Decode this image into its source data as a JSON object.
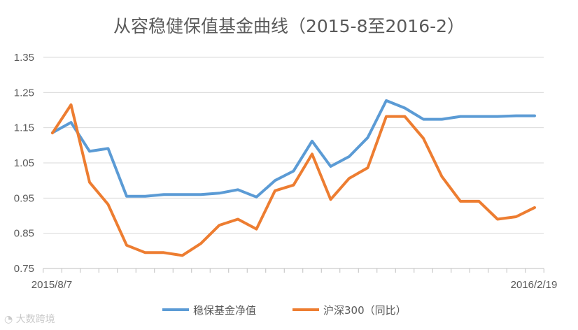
{
  "chart_data": {
    "type": "line",
    "title": "从容稳健保值基金曲线（2015-8至2016-2）",
    "xlabel": "",
    "ylabel": "",
    "x_tick_labels": [
      "2015/8/7",
      "2016/2/19"
    ],
    "y_ticks": [
      0.75,
      0.85,
      0.95,
      1.05,
      1.15,
      1.25,
      1.35
    ],
    "y_tick_labels": [
      "0.75",
      "0.85",
      "0.95",
      "1.05",
      "1.15",
      "1.25",
      "1.35"
    ],
    "ylim": [
      0.75,
      1.35
    ],
    "grid": true,
    "legend_position": "bottom",
    "series": [
      {
        "name": "稳保基金净值",
        "color": "#5B9BD5",
        "values": [
          1.136,
          1.165,
          1.083,
          1.091,
          0.955,
          0.955,
          0.96,
          0.96,
          0.96,
          0.964,
          0.974,
          0.953,
          1.0,
          1.027,
          1.112,
          1.04,
          1.068,
          1.122,
          1.227,
          1.206,
          1.174,
          1.174,
          1.182,
          1.182,
          1.182,
          1.184,
          1.184
        ]
      },
      {
        "name": "沪深300（同比）",
        "color": "#ED7D31",
        "values": [
          1.135,
          1.215,
          0.995,
          0.932,
          0.816,
          0.795,
          0.795,
          0.787,
          0.821,
          0.873,
          0.89,
          0.862,
          0.971,
          0.987,
          1.075,
          0.946,
          1.006,
          1.036,
          1.182,
          1.182,
          1.12,
          1.011,
          0.941,
          0.941,
          0.89,
          0.897,
          0.923
        ]
      }
    ]
  },
  "watermark": "大数跨境"
}
